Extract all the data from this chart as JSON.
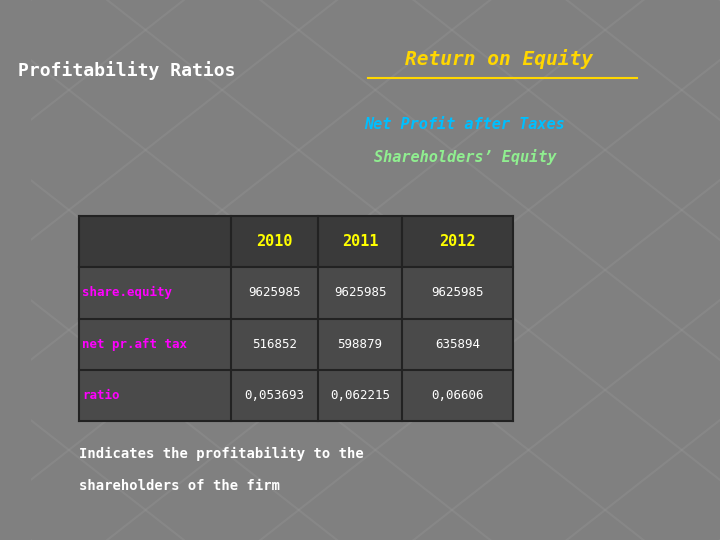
{
  "title": "Return on Equity",
  "subtitle1": "Net Profit after Taxes",
  "subtitle2": "Shareholders’ Equity",
  "profitability_label": "Profitability Ratios",
  "bottom_text1": "Indicates the profitability to the",
  "bottom_text2": "shareholders of the firm",
  "table_headers": [
    "",
    "2010",
    "2011",
    "2012"
  ],
  "row1_label": "share.equity",
  "row2_label": "net pr.aft tax",
  "row3_label": "ratio",
  "row1_values": [
    "9625985",
    "9625985",
    "9625985"
  ],
  "row2_values": [
    "516852",
    "598879",
    "635894"
  ],
  "row3_values": [
    "0,053693",
    "0,062215",
    "0,06606"
  ],
  "bg_color": "#808080",
  "title_color": "#FFD700",
  "subtitle1_color": "#00BFFF",
  "subtitle2_color": "#90EE90",
  "header_color": "#FFFF00",
  "row_label_color": "#FF00FF",
  "data_color": "#FFFFFF",
  "profitability_color": "#FFFFFF",
  "bottom_text_color": "#FFFFFF",
  "table_bg": "#4A4A4A",
  "table_header_bg": "#3A3A3A",
  "table_border_color": "#222222"
}
